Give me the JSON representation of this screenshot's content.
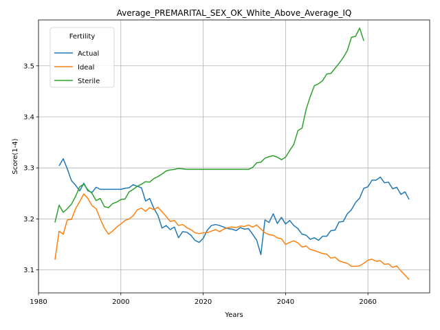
{
  "chart_data": {
    "type": "line",
    "title": "Average_PREMARITAL_SEX_OK_White_Above_Average_IQ",
    "xlabel": "Years",
    "ylabel": "Score(1-4)",
    "xlim": [
      1980,
      2075
    ],
    "ylim": [
      3.055,
      3.59
    ],
    "xticks": [
      1980,
      2000,
      2020,
      2040,
      2060
    ],
    "yticks": [
      3.1,
      3.2,
      3.3,
      3.4,
      3.5
    ],
    "grid": true,
    "legend": {
      "title": "Fertility",
      "placement": "top-left"
    },
    "x": [
      1984,
      1985,
      1986,
      1987,
      1988,
      1989,
      1990,
      1991,
      1992,
      1993,
      1994,
      1995,
      1996,
      1997,
      1998,
      1999,
      2000,
      2001,
      2002,
      2003,
      2004,
      2005,
      2006,
      2007,
      2008,
      2009,
      2010,
      2011,
      2012,
      2013,
      2014,
      2015,
      2016,
      2017,
      2018,
      2019,
      2020,
      2021,
      2022,
      2023,
      2024,
      2025,
      2026,
      2027,
      2028,
      2029,
      2030,
      2031,
      2032,
      2033,
      2034,
      2035,
      2036,
      2037,
      2038,
      2039,
      2040,
      2041,
      2042,
      2043,
      2044,
      2045,
      2046,
      2047,
      2048,
      2049,
      2050,
      2051,
      2052,
      2053,
      2054,
      2055,
      2056,
      2057,
      2058,
      2059,
      2060,
      2061,
      2062,
      2063,
      2064,
      2065,
      2066,
      2067,
      2068,
      2069,
      2070
    ],
    "series": [
      {
        "name": "Actual",
        "color": "#1f77b4",
        "values": [
          null,
          3.304,
          3.318,
          3.298,
          3.275,
          3.266,
          3.255,
          3.27,
          3.255,
          3.252,
          3.262,
          3.258,
          3.258,
          3.258,
          3.258,
          3.258,
          3.258,
          3.26,
          3.261,
          3.267,
          3.264,
          3.261,
          3.235,
          3.24,
          3.221,
          3.207,
          3.182,
          3.187,
          3.179,
          3.184,
          3.163,
          3.175,
          3.174,
          3.168,
          3.158,
          3.154,
          3.162,
          3.178,
          3.187,
          3.189,
          3.187,
          3.184,
          3.181,
          3.18,
          3.177,
          3.183,
          3.18,
          3.181,
          3.17,
          3.158,
          3.13,
          3.198,
          3.193,
          3.21,
          3.191,
          3.203,
          3.19,
          3.197,
          3.187,
          3.181,
          3.17,
          3.168,
          3.16,
          3.163,
          3.158,
          3.166,
          3.166,
          3.177,
          3.178,
          3.194,
          3.195,
          3.21,
          3.218,
          3.232,
          3.241,
          3.26,
          3.263,
          3.276,
          3.276,
          3.282,
          3.271,
          3.272,
          3.259,
          3.262,
          3.248,
          3.253,
          3.238
        ]
      },
      {
        "name": "Ideal",
        "color": "#ff7f0e",
        "values": [
          3.12,
          3.176,
          3.17,
          3.198,
          3.199,
          3.22,
          3.234,
          3.249,
          3.24,
          3.226,
          3.22,
          3.2,
          3.182,
          3.17,
          3.176,
          3.184,
          3.19,
          3.197,
          3.2,
          3.206,
          3.218,
          3.221,
          3.215,
          3.222,
          3.218,
          3.223,
          3.214,
          3.205,
          3.195,
          3.197,
          3.187,
          3.189,
          3.183,
          3.179,
          3.173,
          3.171,
          3.173,
          3.173,
          3.176,
          3.179,
          3.175,
          3.18,
          3.183,
          3.184,
          3.183,
          3.186,
          3.185,
          3.188,
          3.184,
          3.188,
          3.18,
          3.173,
          3.169,
          3.168,
          3.163,
          3.161,
          3.15,
          3.154,
          3.157,
          3.153,
          3.145,
          3.147,
          3.14,
          3.138,
          3.135,
          3.132,
          3.131,
          3.123,
          3.125,
          3.118,
          3.115,
          3.113,
          3.107,
          3.107,
          3.108,
          3.113,
          3.119,
          3.121,
          3.117,
          3.118,
          3.111,
          3.112,
          3.105,
          3.108,
          3.098,
          3.09,
          3.081
        ]
      },
      {
        "name": "Sterile",
        "color": "#2ca02c",
        "values": [
          3.193,
          3.227,
          3.213,
          3.22,
          3.229,
          3.244,
          3.263,
          3.268,
          3.257,
          3.25,
          3.236,
          3.24,
          3.224,
          3.222,
          3.23,
          3.233,
          3.238,
          3.239,
          3.253,
          3.258,
          3.264,
          3.268,
          3.273,
          3.272,
          3.279,
          3.283,
          3.288,
          3.294,
          3.296,
          3.297,
          3.299,
          3.298,
          3.297,
          3.297,
          3.297,
          3.297,
          3.297,
          3.297,
          3.297,
          3.297,
          3.297,
          3.297,
          3.297,
          3.297,
          3.297,
          3.297,
          3.297,
          3.297,
          3.301,
          3.31,
          3.311,
          3.319,
          3.322,
          3.324,
          3.321,
          3.316,
          3.321,
          3.334,
          3.346,
          3.373,
          3.378,
          3.415,
          3.44,
          3.461,
          3.465,
          3.471,
          3.484,
          3.485,
          3.495,
          3.505,
          3.516,
          3.53,
          3.556,
          3.558,
          3.574,
          3.549,
          null,
          null,
          null,
          null,
          null,
          null,
          null,
          null,
          null,
          null,
          null
        ]
      }
    ]
  }
}
